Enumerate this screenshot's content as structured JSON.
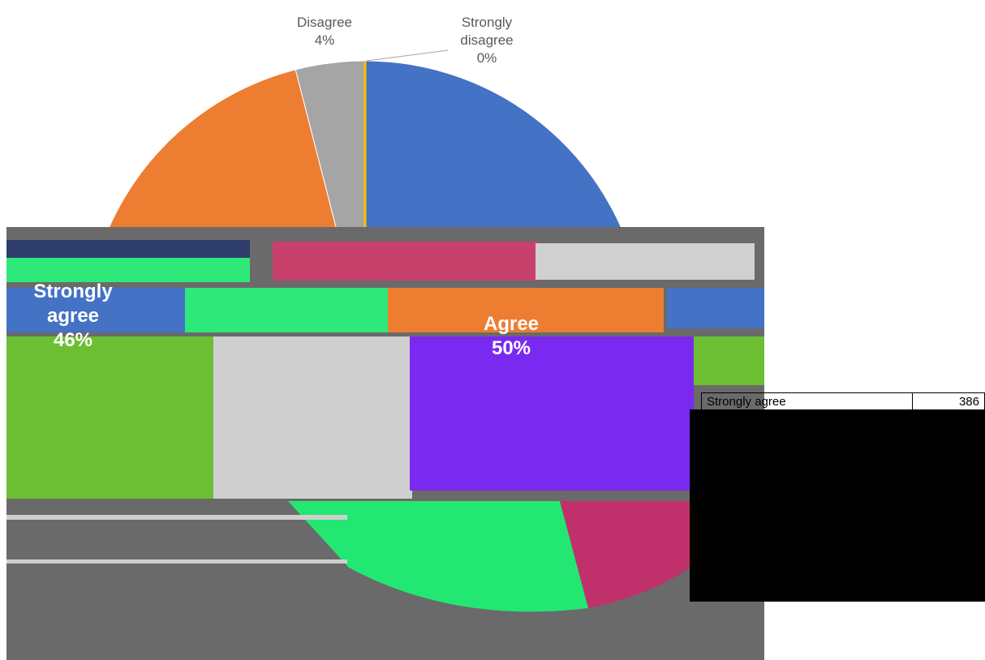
{
  "chart_data": {
    "type": "pie",
    "categories": [
      "Strongly agree",
      "Agree",
      "Disagree",
      "Strongly disagree"
    ],
    "values": [
      46,
      50,
      4,
      0
    ],
    "value_labels": [
      "46%",
      "50%",
      "4%",
      "0%"
    ],
    "colors": [
      "#4472c4",
      "#ed7d31",
      "#a5a5a5",
      "#ffc000"
    ]
  },
  "table": {
    "rows": [
      [
        "Strongly agree",
        386
      ]
    ]
  }
}
